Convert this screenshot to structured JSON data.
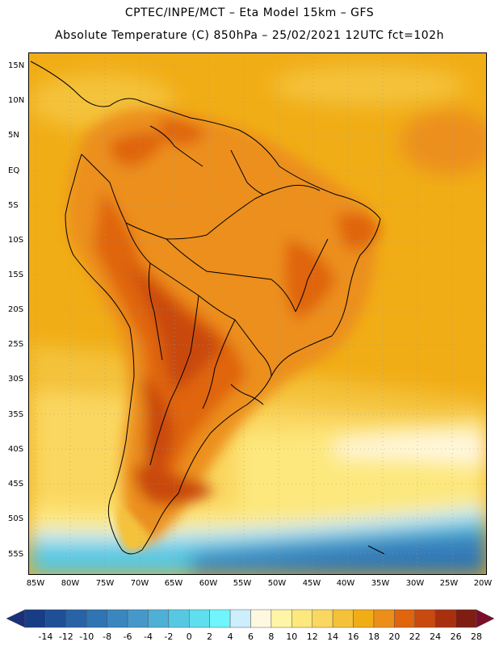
{
  "header": {
    "line1": "CPTEC/INPE/MCT –  Eta Model 15km – GFS",
    "line2": "Absolute Temperature (C) 850hPa – 25/02/2021 12UTC fct=102h"
  },
  "axes": {
    "latitudes": [
      "15N",
      "10N",
      "5N",
      "EQ",
      "5S",
      "10S",
      "15S",
      "20S",
      "25S",
      "30S",
      "35S",
      "40S",
      "45S",
      "50S",
      "55S"
    ],
    "longitudes": [
      "85W",
      "80W",
      "75W",
      "70W",
      "65W",
      "60W",
      "55W",
      "50W",
      "45W",
      "40W",
      "35W",
      "30W",
      "25W",
      "20W"
    ]
  },
  "colorbar": {
    "values": [
      "-14",
      "-12",
      "-10",
      "-8",
      "-6",
      "-4",
      "-2",
      "0",
      "2",
      "4",
      "6",
      "8",
      "10",
      "12",
      "14",
      "16",
      "18",
      "20",
      "22",
      "24",
      "26",
      "28"
    ],
    "colors": [
      "#173d85",
      "#1f4f96",
      "#2763a6",
      "#2f74b3",
      "#3a86bf",
      "#4598c9",
      "#4eb0d6",
      "#57c8e2",
      "#5fdfee",
      "#6ff5fb",
      "#cdeefc",
      "#fff8e0",
      "#fff5a8",
      "#fde87e",
      "#fad760",
      "#f4c23a",
      "#f1ad16",
      "#ec8f1a",
      "#e0650c",
      "#c94a0e",
      "#a9300f",
      "#7f1d12"
    ],
    "low_end_color": "#1b2f7a",
    "high_end_color": "#7d0c2b"
  }
}
